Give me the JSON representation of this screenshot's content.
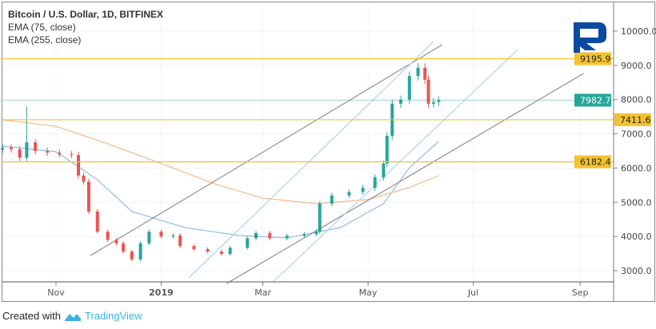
{
  "header": {
    "title": "Bitcoin / U.S. Dollar, 1D, BITFINEX",
    "indicators": [
      "EMA (75, close)",
      "EMA (255, close)"
    ]
  },
  "footer": {
    "prefix": "Created with",
    "brand": "TradingView"
  },
  "colors": {
    "up": "#26a69a",
    "down": "#ef5350",
    "ema75": "#90bde8",
    "ema255": "#f7b884",
    "level": "#f2c230",
    "current": "#26a69a",
    "trend": "#888888",
    "channel": "#a8cfee",
    "logo": "#0a4aa0"
  },
  "chart_data": {
    "type": "candlestick",
    "title": "Bitcoin / U.S. Dollar, 1D, BITFINEX",
    "ylim": [
      2600,
      10800
    ],
    "y_ticks": [
      "3000.0",
      "4000.0",
      "5000.0",
      "6000.0",
      "7000.0",
      "8000.0",
      "9000.0",
      "10000.0"
    ],
    "y_tick_values": [
      3000,
      4000,
      5000,
      6000,
      7000,
      8000,
      9000,
      10000
    ],
    "x_ticks": [
      {
        "label": "Nov",
        "date": "2018-11-01"
      },
      {
        "label": "2019",
        "date": "2019-01-01"
      },
      {
        "label": "Mar",
        "date": "2019-03-01"
      },
      {
        "label": "May",
        "date": "2019-05-01"
      },
      {
        "label": "Jul",
        "date": "2019-07-01"
      },
      {
        "label": "Sep",
        "date": "2019-09-01"
      }
    ],
    "xlim": [
      "2018-10-01",
      "2019-10-05"
    ],
    "closes": [
      [
        "2018-10-01",
        6600
      ],
      [
        "2018-10-06",
        6550
      ],
      [
        "2018-10-11",
        6300
      ],
      [
        "2018-10-15",
        6750
      ],
      [
        "2018-10-20",
        6500
      ],
      [
        "2018-10-27",
        6450
      ],
      [
        "2018-11-03",
        6400
      ],
      [
        "2018-11-10",
        6380
      ],
      [
        "2018-11-14",
        5780
      ],
      [
        "2018-11-17",
        5600
      ],
      [
        "2018-11-20",
        4730
      ],
      [
        "2018-11-25",
        4140
      ],
      [
        "2018-12-01",
        3900
      ],
      [
        "2018-12-06",
        3800
      ],
      [
        "2018-12-10",
        3560
      ],
      [
        "2018-12-15",
        3330
      ],
      [
        "2018-12-20",
        3800
      ],
      [
        "2018-12-25",
        4140
      ],
      [
        "2019-01-01",
        4000
      ],
      [
        "2019-01-08",
        4030
      ],
      [
        "2019-01-12",
        3720
      ],
      [
        "2019-01-20",
        3630
      ],
      [
        "2019-01-28",
        3560
      ],
      [
        "2019-02-05",
        3490
      ],
      [
        "2019-02-10",
        3670
      ],
      [
        "2019-02-20",
        3950
      ],
      [
        "2019-02-25",
        4100
      ],
      [
        "2019-03-05",
        3950
      ],
      [
        "2019-03-15",
        4020
      ],
      [
        "2019-03-25",
        4070
      ],
      [
        "2019-04-01",
        4140
      ],
      [
        "2019-04-03",
        4960
      ],
      [
        "2019-04-10",
        5200
      ],
      [
        "2019-04-20",
        5300
      ],
      [
        "2019-04-28",
        5420
      ],
      [
        "2019-05-05",
        5730
      ],
      [
        "2019-05-10",
        6130
      ],
      [
        "2019-05-12",
        6940
      ],
      [
        "2019-05-15",
        7880
      ],
      [
        "2019-05-20",
        8000
      ],
      [
        "2019-05-25",
        8690
      ],
      [
        "2019-05-30",
        8930
      ],
      [
        "2019-06-03",
        8580
      ],
      [
        "2019-06-05",
        7880
      ],
      [
        "2019-06-08",
        7930
      ],
      [
        "2019-06-11",
        7982.7
      ]
    ],
    "spike": {
      "date": "2018-10-15",
      "high": 7800
    },
    "series": [
      {
        "name": "EMA (75, close)",
        "points": [
          [
            "2018-10-01",
            6640
          ],
          [
            "2018-11-01",
            6480
          ],
          [
            "2018-11-25",
            5660
          ],
          [
            "2018-12-15",
            4730
          ],
          [
            "2019-01-15",
            4260
          ],
          [
            "2019-02-15",
            4030
          ],
          [
            "2019-03-15",
            3960
          ],
          [
            "2019-04-15",
            4260
          ],
          [
            "2019-05-10",
            4960
          ],
          [
            "2019-05-25",
            6010
          ],
          [
            "2019-06-11",
            6780
          ]
        ]
      },
      {
        "name": "EMA (255, close)",
        "points": [
          [
            "2018-10-01",
            7410
          ],
          [
            "2018-11-01",
            7220
          ],
          [
            "2018-12-01",
            6710
          ],
          [
            "2019-01-01",
            6130
          ],
          [
            "2019-02-01",
            5540
          ],
          [
            "2019-03-01",
            5120
          ],
          [
            "2019-04-01",
            4960
          ],
          [
            "2019-05-01",
            5080
          ],
          [
            "2019-05-25",
            5430
          ],
          [
            "2019-06-11",
            5780
          ]
        ]
      }
    ],
    "levels": [
      {
        "value": 9195.9,
        "label": "9195.9",
        "kind": "support-resistance"
      },
      {
        "value": 7411.6,
        "label": "7411.6",
        "kind": "support-resistance"
      },
      {
        "value": 6182.4,
        "label": "6182.4",
        "kind": "support-resistance"
      },
      {
        "value": 7982.7,
        "label": "7982.7",
        "kind": "last-price"
      }
    ],
    "trendlines": [
      {
        "kind": "trend",
        "from": [
          "2018-11-21",
          3444
        ],
        "to": [
          "2019-06-13",
          9603
        ]
      },
      {
        "kind": "trend",
        "from": [
          "2019-02-08",
          2627
        ],
        "to": [
          "2019-09-03",
          8763
        ]
      },
      {
        "kind": "channel",
        "from": [
          "2019-01-17",
          2790
        ],
        "to": [
          "2019-06-08",
          9697
        ]
      },
      {
        "kind": "channel",
        "from": [
          "2019-03-07",
          2674
        ],
        "to": [
          "2019-07-27",
          9463
        ]
      }
    ]
  }
}
